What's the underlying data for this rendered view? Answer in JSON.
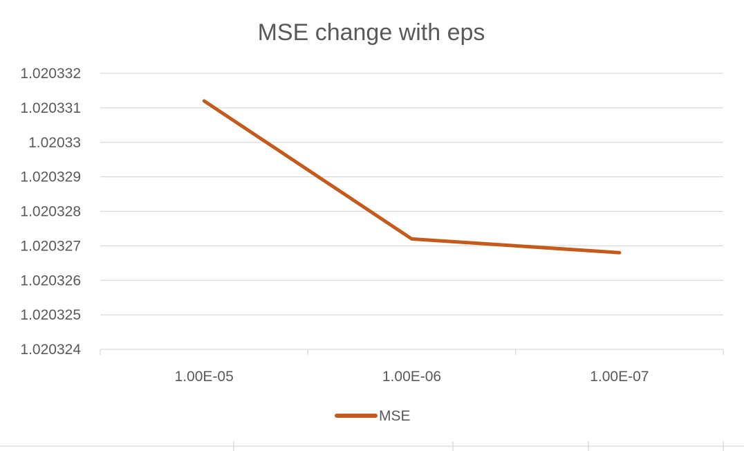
{
  "chart_data": {
    "type": "line",
    "title": "MSE change with eps",
    "xlabel": "",
    "ylabel": "",
    "categories": [
      "1.00E-05",
      "1.00E-06",
      "1.00E-07"
    ],
    "series": [
      {
        "name": "MSE",
        "values": [
          1.0203312,
          1.0203272,
          1.0203268
        ],
        "color": "#C55A1D"
      }
    ],
    "ylim": [
      1.020324,
      1.020332
    ],
    "yticks": [
      "1.020324",
      "1.020325",
      "1.020326",
      "1.020327",
      "1.020328",
      "1.020329",
      "1.02033",
      "1.020331",
      "1.020332"
    ],
    "grid": true,
    "legend_position": "bottom"
  }
}
